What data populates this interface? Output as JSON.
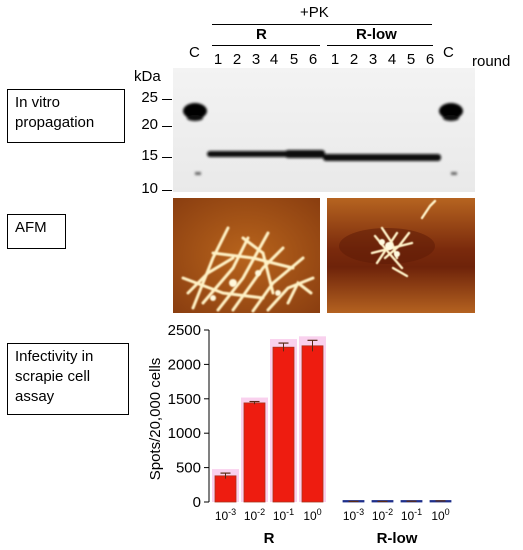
{
  "header": {
    "treatment": "+PK",
    "group_r": "R",
    "group_rlow": "R-low",
    "control_left": "C",
    "control_right": "C",
    "lanes_r": [
      "1",
      "2",
      "3",
      "4",
      "5",
      "6"
    ],
    "lanes_rlow": [
      "1",
      "2",
      "3",
      "4",
      "5",
      "6"
    ],
    "round_label": "round"
  },
  "gel": {
    "unit": "kDa",
    "markers": [
      "25",
      "20",
      "15",
      "10"
    ]
  },
  "rows": {
    "in_vitro": "In vitro\npropagation",
    "afm": "AFM",
    "infectivity": "Infectivity in\nscrapie cell\nassay"
  },
  "chart_data": {
    "type": "bar",
    "ylabel": "Spots/20,000 cells",
    "ylim": [
      0,
      2500
    ],
    "yticks": [
      "0",
      "500",
      "1000",
      "1500",
      "2000",
      "2500"
    ],
    "groups": [
      {
        "name": "R",
        "categories": [
          "10-3",
          "10-2",
          "10-1",
          "100"
        ],
        "values": [
          380,
          1440,
          2250,
          2270
        ],
        "errors": [
          40,
          20,
          60,
          80
        ],
        "color": "#ee1c10"
      },
      {
        "name": "R-low",
        "categories": [
          "10-3",
          "10-2",
          "10-1",
          "100"
        ],
        "values": [
          5,
          5,
          8,
          12
        ],
        "errors": [
          3,
          3,
          3,
          4
        ],
        "color": "#1f2f8a"
      }
    ]
  }
}
